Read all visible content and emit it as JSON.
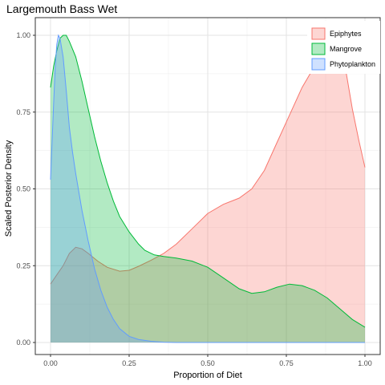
{
  "chart_data": {
    "type": "area",
    "title": "Largemouth Bass Wet",
    "xlabel": "Proportion of Diet",
    "ylabel": "Scaled Posterior Density",
    "xlim": [
      0,
      1
    ],
    "ylim": [
      0,
      1
    ],
    "x_ticks": [
      "0.00",
      "0.25",
      "0.50",
      "0.75",
      "1.00"
    ],
    "y_ticks": [
      "0.00",
      "0.25",
      "0.50",
      "0.75",
      "1.00"
    ],
    "grid": true,
    "legend_position": "top-right",
    "series": [
      {
        "name": "Epiphytes",
        "fill": "#F8766D",
        "stroke": "#F8766D",
        "points": [
          [
            0.0,
            0.19
          ],
          [
            0.02,
            0.22
          ],
          [
            0.04,
            0.25
          ],
          [
            0.06,
            0.29
          ],
          [
            0.08,
            0.31
          ],
          [
            0.1,
            0.305
          ],
          [
            0.12,
            0.29
          ],
          [
            0.15,
            0.265
          ],
          [
            0.18,
            0.245
          ],
          [
            0.22,
            0.232
          ],
          [
            0.25,
            0.235
          ],
          [
            0.28,
            0.248
          ],
          [
            0.32,
            0.268
          ],
          [
            0.36,
            0.29
          ],
          [
            0.4,
            0.32
          ],
          [
            0.45,
            0.37
          ],
          [
            0.5,
            0.42
          ],
          [
            0.55,
            0.45
          ],
          [
            0.6,
            0.47
          ],
          [
            0.64,
            0.5
          ],
          [
            0.68,
            0.56
          ],
          [
            0.72,
            0.65
          ],
          [
            0.76,
            0.74
          ],
          [
            0.8,
            0.83
          ],
          [
            0.84,
            0.9
          ],
          [
            0.87,
            0.95
          ],
          [
            0.9,
            1.0
          ],
          [
            0.92,
            0.97
          ],
          [
            0.94,
            0.88
          ],
          [
            0.96,
            0.76
          ],
          [
            0.98,
            0.66
          ],
          [
            1.0,
            0.57
          ]
        ]
      },
      {
        "name": "Mangrove",
        "fill": "#00BA38",
        "stroke": "#00BA38",
        "points": [
          [
            0.0,
            0.83
          ],
          [
            0.01,
            0.9
          ],
          [
            0.02,
            0.95
          ],
          [
            0.03,
            0.99
          ],
          [
            0.04,
            1.0
          ],
          [
            0.05,
            1.0
          ],
          [
            0.06,
            0.98
          ],
          [
            0.08,
            0.93
          ],
          [
            0.1,
            0.85
          ],
          [
            0.12,
            0.76
          ],
          [
            0.14,
            0.67
          ],
          [
            0.16,
            0.59
          ],
          [
            0.18,
            0.52
          ],
          [
            0.2,
            0.46
          ],
          [
            0.22,
            0.41
          ],
          [
            0.25,
            0.36
          ],
          [
            0.28,
            0.32
          ],
          [
            0.3,
            0.3
          ],
          [
            0.33,
            0.285
          ],
          [
            0.36,
            0.28
          ],
          [
            0.4,
            0.275
          ],
          [
            0.45,
            0.265
          ],
          [
            0.5,
            0.245
          ],
          [
            0.55,
            0.21
          ],
          [
            0.6,
            0.175
          ],
          [
            0.64,
            0.16
          ],
          [
            0.68,
            0.165
          ],
          [
            0.72,
            0.18
          ],
          [
            0.76,
            0.19
          ],
          [
            0.8,
            0.185
          ],
          [
            0.84,
            0.17
          ],
          [
            0.88,
            0.145
          ],
          [
            0.92,
            0.11
          ],
          [
            0.96,
            0.075
          ],
          [
            1.0,
            0.05
          ]
        ]
      },
      {
        "name": "Phytoplankton",
        "fill": "#619CFF",
        "stroke": "#619CFF",
        "points": [
          [
            0.0,
            0.53
          ],
          [
            0.01,
            0.78
          ],
          [
            0.015,
            0.9
          ],
          [
            0.02,
            0.97
          ],
          [
            0.025,
            1.0
          ],
          [
            0.03,
            0.99
          ],
          [
            0.04,
            0.93
          ],
          [
            0.05,
            0.82
          ],
          [
            0.06,
            0.7
          ],
          [
            0.07,
            0.62
          ],
          [
            0.08,
            0.55
          ],
          [
            0.1,
            0.43
          ],
          [
            0.12,
            0.33
          ],
          [
            0.14,
            0.24
          ],
          [
            0.16,
            0.17
          ],
          [
            0.18,
            0.115
          ],
          [
            0.2,
            0.075
          ],
          [
            0.22,
            0.045
          ],
          [
            0.25,
            0.02
          ],
          [
            0.28,
            0.01
          ],
          [
            0.32,
            0.004
          ],
          [
            0.36,
            0.001
          ],
          [
            0.4,
            0.0
          ],
          [
            1.0,
            0.0
          ]
        ]
      }
    ]
  }
}
